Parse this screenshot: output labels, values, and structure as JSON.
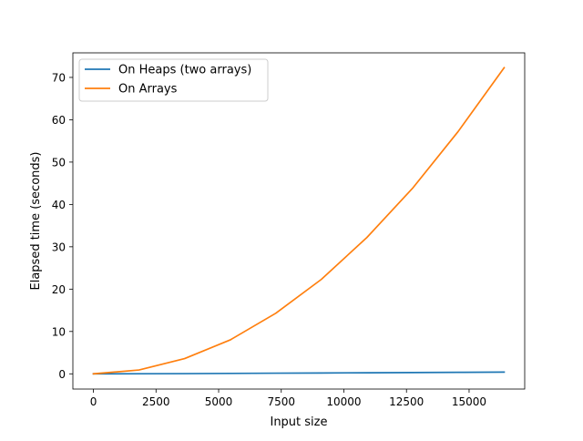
{
  "chart_data": {
    "type": "line",
    "title": "",
    "xlabel": "Input size",
    "ylabel": "Elapsed time (seconds)",
    "xlim": [
      -820,
      17220
    ],
    "ylim": [
      -3.6,
      75.8
    ],
    "grid": false,
    "legend_position": "top-left",
    "x_ticks": [
      0,
      2500,
      5000,
      7500,
      10000,
      12500,
      15000
    ],
    "x_tick_labels": [
      "0",
      "2500",
      "5000",
      "7500",
      "10000",
      "12500",
      "15000"
    ],
    "y_ticks": [
      0,
      10,
      20,
      30,
      40,
      50,
      60,
      70
    ],
    "y_tick_labels": [
      "0",
      "10",
      "20",
      "30",
      "40",
      "50",
      "60",
      "70"
    ],
    "series": [
      {
        "name": "On Heaps (two arrays)",
        "color": "#1f77b4",
        "x": [
          0,
          1820,
          3640,
          5460,
          7280,
          9100,
          10920,
          12740,
          14560,
          16400
        ],
        "y": [
          0.0,
          0.02,
          0.05,
          0.1,
          0.15,
          0.2,
          0.25,
          0.3,
          0.35,
          0.4
        ]
      },
      {
        "name": "On Arrays",
        "color": "#ff7f0e",
        "x": [
          0,
          1820,
          3640,
          5460,
          7280,
          9100,
          10920,
          12740,
          14560,
          16400
        ],
        "y": [
          0.0,
          0.9,
          3.6,
          8.0,
          14.3,
          22.3,
          32.2,
          43.8,
          57.2,
          72.3
        ]
      }
    ]
  }
}
